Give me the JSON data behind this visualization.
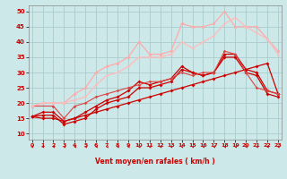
{
  "xlabel": "Vent moyen/en rafales ( km/h )",
  "bg_color": "#cce8e8",
  "grid_color": "#aacccc",
  "x_ticks": [
    0,
    1,
    2,
    3,
    4,
    5,
    6,
    7,
    8,
    9,
    10,
    11,
    12,
    13,
    14,
    15,
    16,
    17,
    18,
    19,
    20,
    21,
    22,
    23
  ],
  "ylim": [
    8,
    52
  ],
  "xlim": [
    -0.3,
    23.3
  ],
  "lines": [
    {
      "x": [
        0,
        1,
        2,
        3,
        4,
        5,
        6,
        7,
        8,
        9,
        10,
        11,
        12,
        13,
        14,
        15,
        16,
        17,
        18,
        19,
        20,
        21,
        22,
        23
      ],
      "y": [
        15.5,
        16,
        16,
        13,
        14,
        15,
        18,
        20,
        21,
        22,
        25,
        25,
        26,
        27,
        31,
        30,
        29,
        30,
        36,
        36,
        31,
        30,
        24,
        23
      ],
      "color": "#cc0000",
      "lw": 0.9,
      "marker": "D",
      "ms": 2.0
    },
    {
      "x": [
        0,
        1,
        2,
        3,
        4,
        5,
        6,
        7,
        8,
        9,
        10,
        11,
        12,
        13,
        14,
        15,
        16,
        17,
        18,
        19,
        20,
        21,
        22,
        23
      ],
      "y": [
        15.5,
        17,
        17,
        14,
        15,
        17,
        19,
        21,
        22,
        24,
        27,
        26,
        27,
        28,
        32,
        30,
        29,
        30,
        35,
        35,
        30,
        29,
        23,
        22
      ],
      "color": "#cc0000",
      "lw": 0.9,
      "marker": "D",
      "ms": 2.0
    },
    {
      "x": [
        0,
        1,
        2,
        3,
        4,
        5,
        6,
        7,
        8,
        9,
        10,
        11,
        12,
        13,
        14,
        15,
        16,
        17,
        18,
        19,
        20,
        21,
        22,
        23
      ],
      "y": [
        15.5,
        15,
        15,
        14,
        15,
        16,
        17,
        18,
        19,
        20,
        21,
        22,
        23,
        24,
        25,
        26,
        27,
        28,
        29,
        30,
        31,
        32,
        33,
        23
      ],
      "color": "#cc0000",
      "lw": 0.9,
      "marker": "D",
      "ms": 2.0
    },
    {
      "x": [
        0,
        2,
        3,
        4,
        5,
        6,
        7,
        8,
        9,
        10,
        11,
        12,
        13,
        14,
        15,
        16,
        17,
        18,
        19,
        20,
        21,
        22,
        23
      ],
      "y": [
        19,
        19,
        15,
        19,
        20,
        22,
        23,
        24,
        25,
        26,
        27,
        27,
        28,
        30,
        29,
        30,
        30,
        37,
        36,
        30,
        25,
        24,
        23
      ],
      "color": "#dd4444",
      "lw": 0.8,
      "marker": "D",
      "ms": 1.8
    },
    {
      "x": [
        0,
        1,
        2,
        3,
        4,
        5,
        6,
        7,
        8,
        9,
        10,
        11,
        12,
        13,
        14,
        15,
        16,
        17,
        18,
        19,
        20,
        21,
        22,
        23
      ],
      "y": [
        19,
        20,
        20,
        20,
        23,
        25,
        30,
        32,
        33,
        35,
        40,
        36,
        36,
        37,
        46,
        45,
        45,
        46,
        50,
        45,
        45,
        45,
        41,
        37
      ],
      "color": "#ffaaaa",
      "lw": 0.9,
      "marker": "o",
      "ms": 2.2
    },
    {
      "x": [
        0,
        1,
        2,
        3,
        4,
        5,
        6,
        7,
        8,
        9,
        10,
        11,
        12,
        13,
        14,
        15,
        16,
        17,
        18,
        19,
        20,
        21,
        22,
        23
      ],
      "y": [
        19,
        20,
        20,
        20,
        21,
        22,
        26,
        29,
        30,
        32,
        35,
        35,
        35,
        36,
        40,
        38,
        40,
        42,
        46,
        48,
        45,
        43,
        41,
        36
      ],
      "color": "#ffbbbb",
      "lw": 0.9,
      "marker": "o",
      "ms": 1.8
    }
  ],
  "yticks": [
    10,
    15,
    20,
    25,
    30,
    35,
    40,
    45,
    50
  ],
  "arrow_color": "#cc0000"
}
